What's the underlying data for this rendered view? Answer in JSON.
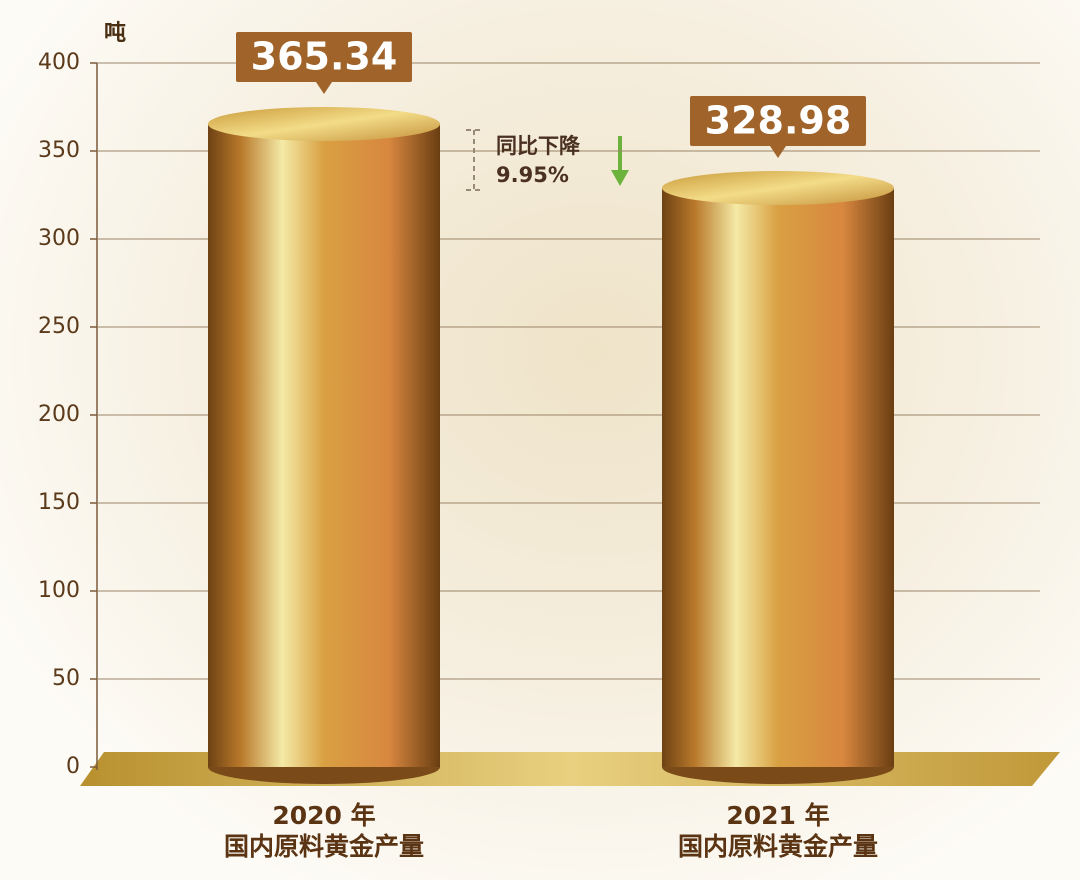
{
  "chart_data": {
    "type": "cylinder-bar",
    "y_axis_label": "吨",
    "categories": [
      "2020 年\n国内原料黄金产量",
      "2021 年\n国内原料黄金产量"
    ],
    "values": [
      365.34,
      328.98
    ],
    "annotation": "同比下降\n9.95%",
    "ylim": [
      0,
      400
    ],
    "yticks": [
      0,
      50,
      100,
      150,
      200,
      250,
      300,
      350,
      400
    ],
    "grid": true,
    "label_color": "#a0632a"
  }
}
